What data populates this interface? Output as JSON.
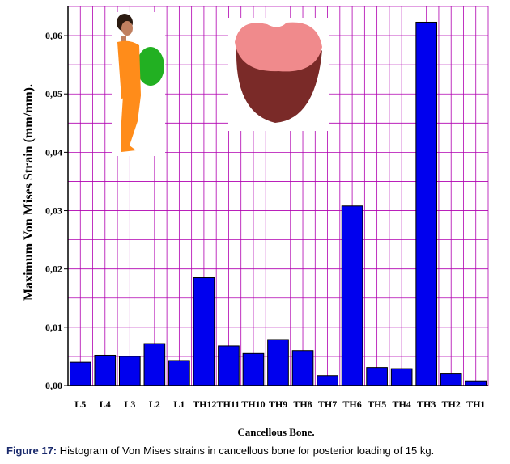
{
  "chart_data": {
    "type": "bar",
    "categories": [
      "L5",
      "L4",
      "L3",
      "L2",
      "L1",
      "TH12",
      "TH11",
      "TH10",
      "TH9",
      "TH8",
      "TH7",
      "TH6",
      "TH5",
      "TH4",
      "TH3",
      "TH2",
      "TH1"
    ],
    "values": [
      0.004,
      0.0052,
      0.005,
      0.0072,
      0.0043,
      0.0185,
      0.0068,
      0.0055,
      0.0079,
      0.006,
      0.0017,
      0.0308,
      0.0031,
      0.0029,
      0.0623,
      0.002,
      0.0008
    ],
    "title": "",
    "xlabel": "Cancellous Bone.",
    "ylabel": "Maximum Von Mises Strain (mm/mm).",
    "ylim": [
      0,
      0.065
    ],
    "yticks": [
      0.0,
      0.01,
      0.02,
      0.03,
      0.04,
      0.05,
      0.06
    ],
    "ytick_labels": [
      "0,00",
      "0,01",
      "0,02",
      "0,03",
      "0,04",
      "0,05",
      "0,06"
    ],
    "tick_label_text": [
      "L5",
      "L4",
      "L3",
      "L2",
      "L1",
      "TH12TH11",
      "TH10",
      "TH9",
      "TH8",
      "TH7",
      "TH6",
      "TH5",
      "TH4",
      "TH3",
      "TH2",
      "TH1"
    ],
    "grid": true,
    "bar_color": "#0000ee",
    "grid_color": "#b000b0"
  },
  "figure": {
    "caption_label": "Figure 17:",
    "caption_text": "Histogram of Von Mises strains in cancellous bone for posterior loading of 15 kg."
  },
  "illustrations": {
    "person": "person-with-backpack-illustration",
    "vertebra": "vertebra-body-illustration"
  }
}
